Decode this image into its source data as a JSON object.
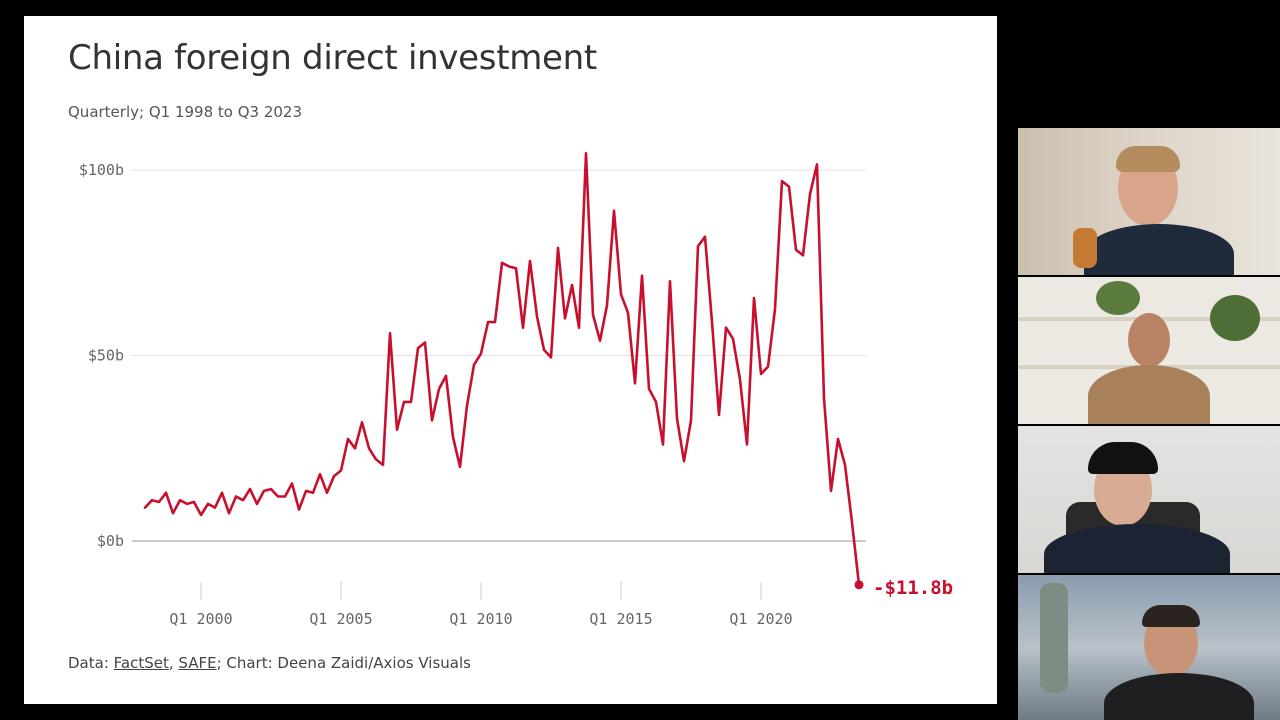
{
  "slide": {
    "title": "China foreign direct investment",
    "subtitle": "Quarterly; Q1 1998 to Q3 2023",
    "source": {
      "prefix": "Data: ",
      "link1": "FactSet",
      "sep": ", ",
      "link2": "SAFE",
      "suffix": "; Chart: Deena Zaidi/Axios Visuals"
    }
  },
  "chart_data": {
    "type": "line",
    "title": "China foreign direct investment",
    "subtitle": "Quarterly; Q1 1998 to Q3 2023",
    "x_range": [
      "Q1 1998",
      "Q3 2023"
    ],
    "ylim": [
      -12,
      105
    ],
    "grid": true,
    "y_ticks": [
      {
        "value": 100,
        "label": "$100b"
      },
      {
        "value": 50,
        "label": "$50b"
      },
      {
        "value": 0,
        "label": "$0b"
      }
    ],
    "x_ticks": [
      {
        "year": 2000,
        "label": "Q1 2000"
      },
      {
        "year": 2005,
        "label": "Q1 2005"
      },
      {
        "year": 2010,
        "label": "Q1 2010"
      },
      {
        "year": 2015,
        "label": "Q1 2015"
      },
      {
        "year": 2020,
        "label": "Q1 2020"
      }
    ],
    "series": [
      {
        "color": "#c8102e",
        "start_year": 1998,
        "values": [
          9,
          11,
          10.5,
          13,
          7.5,
          11,
          10,
          10.5,
          7,
          10,
          9,
          13,
          7.5,
          12,
          11,
          14,
          10,
          13.5,
          14,
          12,
          12,
          15.5,
          8.5,
          13.5,
          13,
          18,
          13,
          17.5,
          19,
          27.5,
          25,
          32,
          25,
          22,
          20.5,
          56,
          30,
          37.5,
          37.5,
          52,
          53.5,
          32.5,
          41,
          44.5,
          28,
          20,
          36.5,
          47.5,
          50.5,
          59,
          59,
          75,
          74,
          73.5,
          57.5,
          75.5,
          60.5,
          51.5,
          49.5,
          79,
          60,
          69,
          57.5,
          104.5,
          61,
          54,
          63.5,
          89,
          66.5,
          61.5,
          42.5,
          71.5,
          41,
          37.5,
          26,
          70,
          33,
          21.5,
          32.5,
          79.5,
          82,
          59,
          34,
          57.5,
          54.5,
          43.5,
          26,
          65.5,
          45,
          47,
          62.5,
          97,
          95.5,
          78.5,
          77,
          93.5,
          101.5,
          38.5,
          13.5,
          27.5,
          20.5,
          5,
          -11.8
        ]
      }
    ],
    "end_label": "-$11.8b"
  }
}
